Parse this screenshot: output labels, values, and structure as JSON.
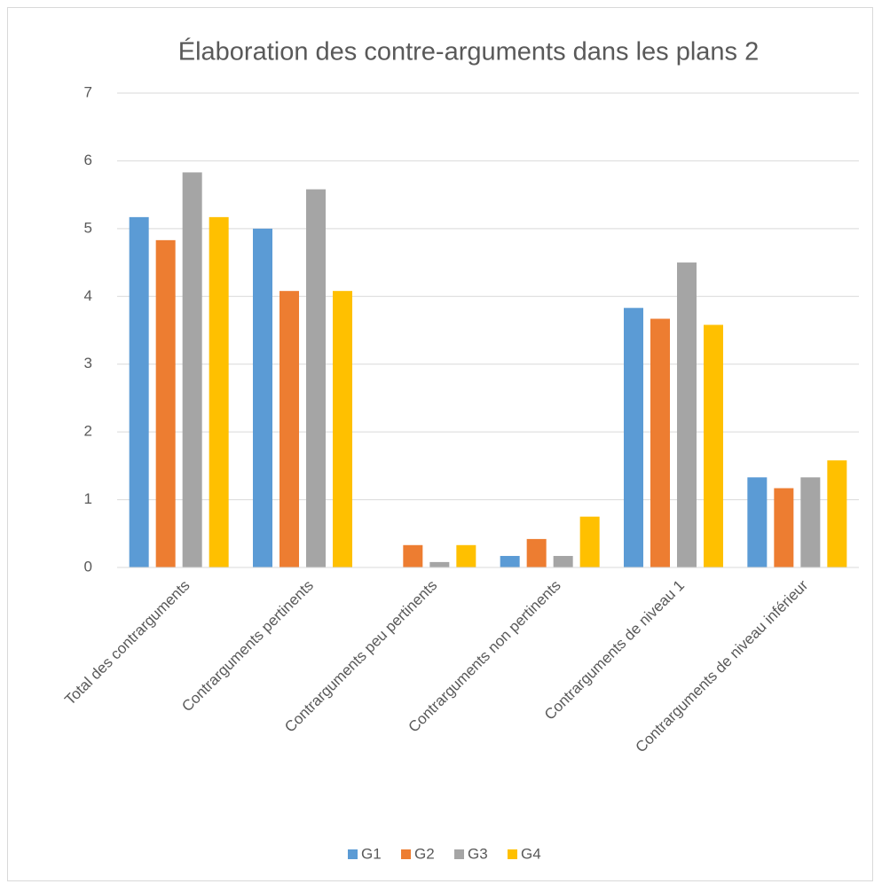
{
  "chart_data": {
    "type": "bar",
    "title": "Élaboration des contre-arguments dans les plans 2",
    "categories": [
      "Total des contrarguments",
      "Contrarguments pertinents",
      "Contrarguments peu pertinents",
      "Contrarguments non pertinents",
      "Contrarguments de niveau 1",
      "Contrarguments de niveau inférieur"
    ],
    "series": [
      {
        "name": "G1",
        "color": "#5b9bd5",
        "values": [
          5.17,
          5.0,
          0,
          0.17,
          3.83,
          1.33
        ]
      },
      {
        "name": "G2",
        "color": "#ed7d31",
        "values": [
          4.83,
          4.08,
          0.33,
          0.42,
          3.67,
          1.17
        ]
      },
      {
        "name": "G3",
        "color": "#a5a5a5",
        "values": [
          5.83,
          5.58,
          0.08,
          0.17,
          4.5,
          1.33
        ]
      },
      {
        "name": "G4",
        "color": "#ffc000",
        "values": [
          5.17,
          4.08,
          0.33,
          0.75,
          3.58,
          1.58
        ]
      }
    ],
    "ylim": [
      0,
      7
    ],
    "yticks": [
      0,
      1,
      2,
      3,
      4,
      5,
      6,
      7
    ],
    "grid": true,
    "legend": "bottom"
  }
}
